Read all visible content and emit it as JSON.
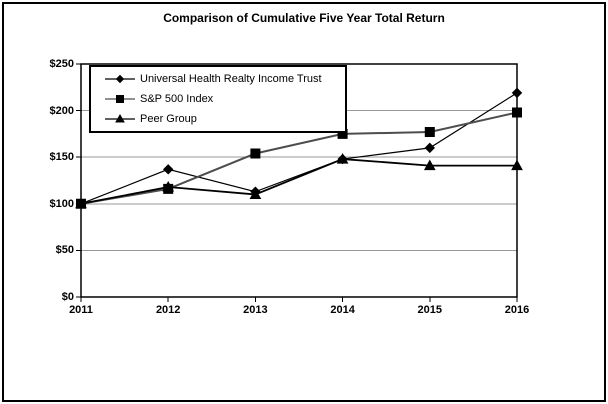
{
  "chart_data": {
    "type": "line",
    "title": "Comparison of Cumulative Five Year Total Return",
    "categories": [
      "2011",
      "2012",
      "2013",
      "2014",
      "2015",
      "2016"
    ],
    "series": [
      {
        "name": "Universal Health Realty Income Trust",
        "marker": "diamond",
        "color": "#000000",
        "line_width": 1.2,
        "values": [
          100,
          137,
          113,
          148,
          160,
          219
        ]
      },
      {
        "name": "S&P 500 Index",
        "marker": "square",
        "color": "#4d4d4d",
        "line_width": 2,
        "values": [
          100,
          116,
          154,
          175,
          177,
          198
        ]
      },
      {
        "name": "Peer Group",
        "marker": "triangle",
        "color": "#000000",
        "line_width": 1.8,
        "values": [
          100,
          118,
          110,
          148,
          141,
          141
        ]
      }
    ],
    "xlabel": "",
    "ylabel": "",
    "ylim": [
      0,
      250
    ],
    "y_ticks": [
      {
        "value": 0,
        "label": "$0"
      },
      {
        "value": 50,
        "label": "$50"
      },
      {
        "value": 100,
        "label": "$100"
      },
      {
        "value": 150,
        "label": "$150"
      },
      {
        "value": 200,
        "label": "$200"
      },
      {
        "value": 250,
        "label": "$250"
      }
    ],
    "grid": true,
    "grid_color": "#999999",
    "axis_color": "#000000",
    "marker_color": "#000000",
    "background": "#ffffff",
    "legend_position": "inside-top-left"
  }
}
